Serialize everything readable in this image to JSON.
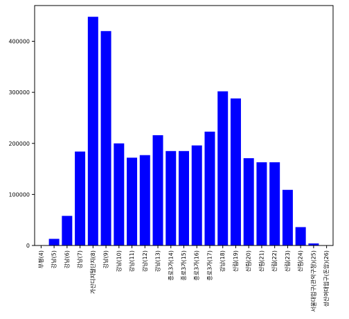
{
  "chart_data": {
    "type": "bar",
    "title": "",
    "xlabel": "",
    "ylabel": "",
    "categories": [
      "부평(4)",
      "강남(5)",
      "강남(6)",
      "강남(7)",
      "가산디지털단지(8)",
      "강남(9)",
      "강남(10)",
      "강남(11)",
      "강남(12)",
      "강남(13)",
      "종로3가(14)",
      "종로3가(15)",
      "종로3가(16)",
      "종로3가(17)",
      "강남(18)",
      "신림(19)",
      "신림(20)",
      "신림(21)",
      "신림(22)",
      "신림(23)",
      "신림(24)",
      "서울대입구(관악구청)(25)",
      "성신여대입구(돈암)(26)"
    ],
    "values": [
      0,
      13000,
      58000,
      184000,
      448000,
      420000,
      200000,
      172000,
      177000,
      216000,
      185000,
      185000,
      196000,
      223000,
      302000,
      288000,
      171000,
      163000,
      163000,
      109000,
      36000,
      4000,
      0
    ],
    "ylim": [
      0,
      470000
    ],
    "yticks": [
      0,
      100000,
      200000,
      300000,
      400000
    ],
    "ytick_labels": [
      "0",
      "100000",
      "200000",
      "300000",
      "400000"
    ],
    "bar_color": "#0000ff",
    "grid": false,
    "legend": "none"
  }
}
